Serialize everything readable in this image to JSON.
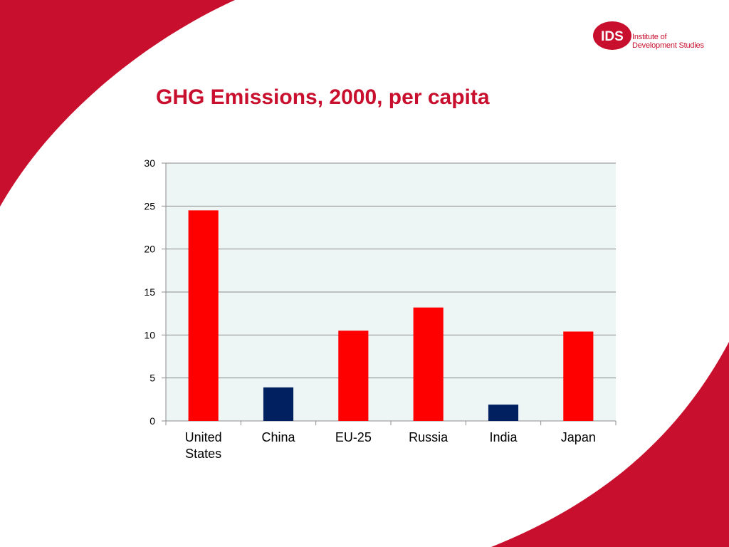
{
  "logo": {
    "badge": "IDS",
    "line1": "Institute of",
    "line2": "Development Studies"
  },
  "colors": {
    "brand": "#c8102e",
    "bar_red": "#ff0000",
    "bar_navy": "#002060",
    "plot_bg": "#eef5f5"
  },
  "chart_data": {
    "type": "bar",
    "title": "GHG Emissions, 2000, per capita",
    "xlabel": "",
    "ylabel": "",
    "categories": [
      "United States",
      "China",
      "EU-25",
      "Russia",
      "India",
      "Japan"
    ],
    "category_lines": [
      [
        "United",
        "States"
      ],
      [
        "China"
      ],
      [
        "EU-25"
      ],
      [
        "Russia"
      ],
      [
        "India"
      ],
      [
        "Japan"
      ]
    ],
    "values": [
      24.5,
      3.9,
      10.5,
      13.2,
      1.9,
      10.4
    ],
    "bar_colors": [
      "#ff0000",
      "#002060",
      "#ff0000",
      "#ff0000",
      "#002060",
      "#ff0000"
    ],
    "ylim": [
      0,
      30
    ],
    "yticks": [
      0,
      5,
      10,
      15,
      20,
      25,
      30
    ],
    "grid": true,
    "legend": "none"
  }
}
